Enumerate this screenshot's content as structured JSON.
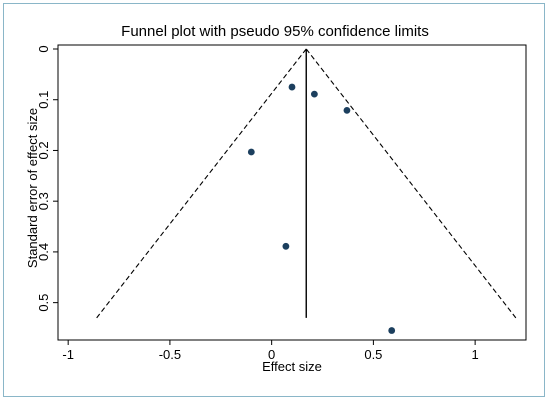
{
  "chart_data": {
    "type": "scatter",
    "title": "Funnel plot with pseudo 95% confidence limits",
    "xlabel": "Effect size",
    "ylabel": "Standard error of effect size",
    "xlim": [
      -1.05,
      1.25
    ],
    "ylim": [
      0,
      0.55
    ],
    "y_reversed": true,
    "grid": false,
    "x_ticks": [
      {
        "value": -1,
        "label": "-1"
      },
      {
        "value": -0.5,
        "label": "-0.5"
      },
      {
        "value": 0,
        "label": "0"
      },
      {
        "value": 0.5,
        "label": "0.5"
      },
      {
        "value": 1,
        "label": "1"
      }
    ],
    "y_ticks": [
      {
        "value": 0,
        "label": "0"
      },
      {
        "value": 0.1,
        "label": "0.1"
      },
      {
        "value": 0.2,
        "label": "0.2"
      },
      {
        "value": 0.3,
        "label": "0.3"
      },
      {
        "value": 0.4,
        "label": "0.4"
      },
      {
        "value": 0.5,
        "label": "0.5"
      }
    ],
    "points": [
      {
        "x": 0.1,
        "y": 0.075
      },
      {
        "x": 0.21,
        "y": 0.089
      },
      {
        "x": 0.37,
        "y": 0.121
      },
      {
        "x": -0.1,
        "y": 0.203
      },
      {
        "x": 0.07,
        "y": 0.389
      },
      {
        "x": 0.59,
        "y": 0.555
      }
    ],
    "pooled_effect": 0.17,
    "ci_limits": {
      "apex": [
        0.17,
        0
      ],
      "left_end": [
        -0.86,
        0.53
      ],
      "right_end": [
        1.2,
        0.53
      ]
    },
    "colors": {
      "points": "#1c3f5e",
      "lines": "#000000",
      "frame": "#000000",
      "outer_border": "#8ab6c8"
    }
  }
}
